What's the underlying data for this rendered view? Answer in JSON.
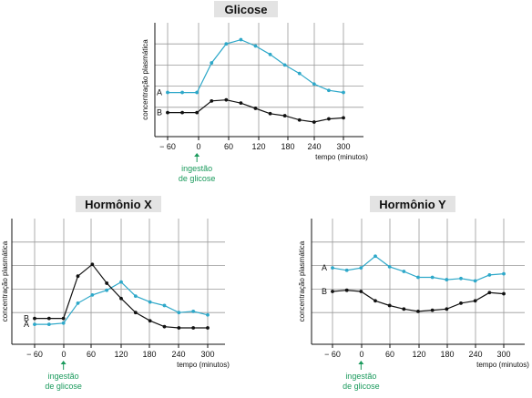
{
  "colors": {
    "series_a": "#2ea8c9",
    "series_b": "#111111",
    "annotation": "#1a9a5c",
    "grid": "#999999",
    "title_bg": "#e3e3e3"
  },
  "chart_data": [
    {
      "type": "line",
      "title": "Glicose",
      "xlabel": "tempo (minutos)",
      "ylabel": "concentração plasmática",
      "x_ticks": [
        "− 60",
        "0",
        "60",
        "120",
        "180",
        "240",
        "300"
      ],
      "xlim": [
        -75,
        315
      ],
      "ylim": [
        0,
        5
      ],
      "grid": true,
      "annotation": {
        "x": 0,
        "line1": "ingestão",
        "line2": "de glicose"
      },
      "series": [
        {
          "name": "A",
          "x": [
            -60,
            -30,
            0,
            30,
            60,
            90,
            120,
            150,
            180,
            210,
            240,
            270,
            300
          ],
          "values": [
            1.7,
            1.7,
            1.7,
            3.1,
            4.0,
            4.2,
            3.9,
            3.5,
            3.0,
            2.6,
            2.1,
            1.8,
            1.7
          ]
        },
        {
          "name": "B",
          "x": [
            -60,
            -30,
            0,
            30,
            60,
            90,
            120,
            150,
            180,
            210,
            240,
            270,
            300
          ],
          "values": [
            0.75,
            0.75,
            0.75,
            1.3,
            1.35,
            1.2,
            0.95,
            0.7,
            0.6,
            0.4,
            0.3,
            0.45,
            0.5
          ]
        }
      ]
    },
    {
      "type": "line",
      "title": "Hormônio X",
      "xlabel": "tempo (minutos)",
      "ylabel": "concentração plasmática",
      "x_ticks": [
        "− 60",
        "0",
        "60",
        "120",
        "180",
        "240",
        "300"
      ],
      "xlim": [
        -75,
        315
      ],
      "ylim": [
        0,
        5
      ],
      "grid": true,
      "annotation": {
        "x": 0,
        "line1": "ingestão",
        "line2": "de glicose"
      },
      "series": [
        {
          "name": "A",
          "x": [
            -60,
            -30,
            0,
            30,
            60,
            90,
            120,
            150,
            180,
            210,
            240,
            270,
            300
          ],
          "values": [
            0.5,
            0.5,
            0.55,
            1.4,
            1.75,
            1.95,
            2.3,
            1.7,
            1.45,
            1.3,
            1.0,
            1.05,
            0.9
          ]
        },
        {
          "name": "B",
          "x": [
            -60,
            -30,
            0,
            30,
            60,
            90,
            120,
            150,
            180,
            210,
            240,
            270,
            300
          ],
          "values": [
            0.75,
            0.75,
            0.75,
            2.55,
            3.05,
            2.25,
            1.6,
            1.0,
            0.65,
            0.4,
            0.35,
            0.35,
            0.35
          ]
        }
      ]
    },
    {
      "type": "line",
      "title": "Hormônio Y",
      "xlabel": "tempo (minutos)",
      "ylabel": "concentração plasmática",
      "x_ticks": [
        "− 60",
        "0",
        "60",
        "120",
        "180",
        "240",
        "300"
      ],
      "xlim": [
        -75,
        315
      ],
      "ylim": [
        0,
        5
      ],
      "grid": true,
      "annotation": {
        "x": 0,
        "line1": "ingestão",
        "line2": "de glicose"
      },
      "series": [
        {
          "name": "A",
          "x": [
            -60,
            -30,
            0,
            30,
            60,
            90,
            120,
            150,
            180,
            210,
            240,
            270,
            300
          ],
          "values": [
            2.9,
            2.8,
            2.9,
            3.4,
            2.95,
            2.75,
            2.5,
            2.5,
            2.4,
            2.45,
            2.35,
            2.6,
            2.65
          ]
        },
        {
          "name": "B",
          "x": [
            -60,
            -30,
            0,
            30,
            60,
            90,
            120,
            150,
            180,
            210,
            240,
            270,
            300
          ],
          "values": [
            1.9,
            1.95,
            1.9,
            1.5,
            1.3,
            1.15,
            1.05,
            1.1,
            1.15,
            1.4,
            1.5,
            1.85,
            1.8
          ]
        }
      ]
    }
  ]
}
